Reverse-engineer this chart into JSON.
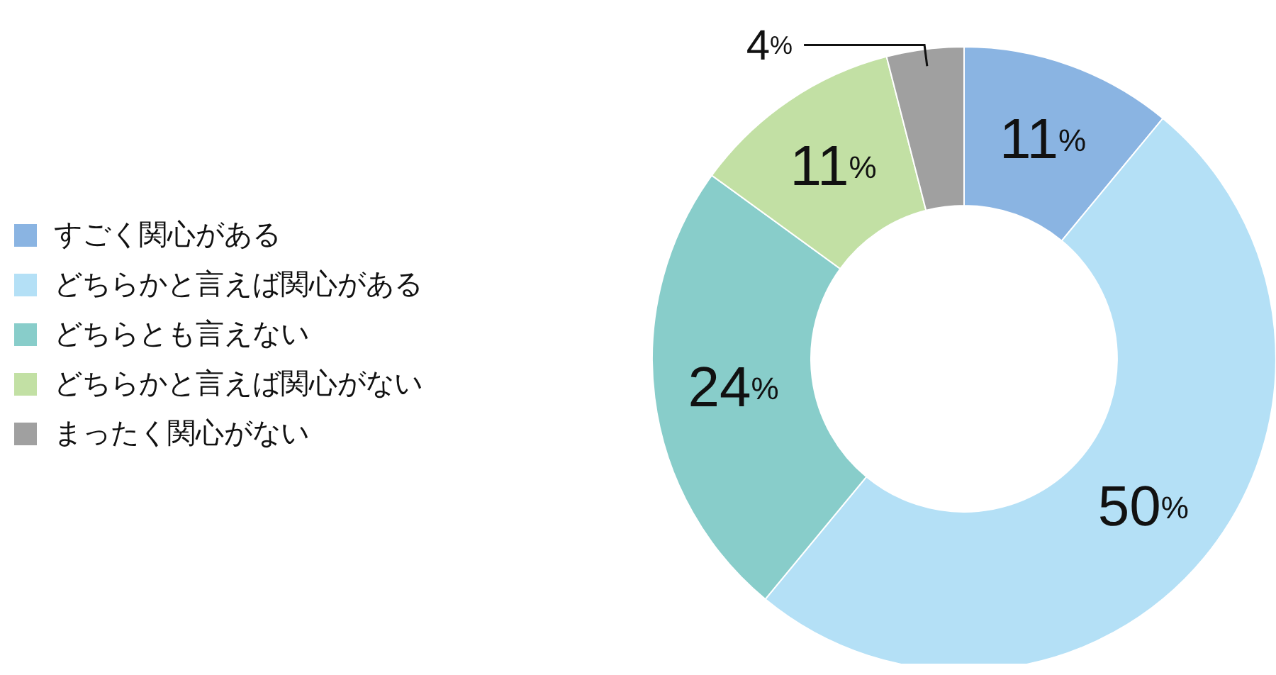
{
  "chart_data": {
    "type": "donut",
    "categories": [
      "すごく関心がある",
      "どちらかと言えば関心がある",
      "どちらとも言えない",
      "どちらかと言えば関心がない",
      "まったく関心がない"
    ],
    "values": [
      11,
      50,
      24,
      11,
      4
    ],
    "value_labels": [
      "11%",
      "50%",
      "24%",
      "11%",
      "4%"
    ],
    "colors": [
      "#8ab4e2",
      "#b4e0f6",
      "#88cdca",
      "#c2e0a4",
      "#a0a0a0"
    ],
    "legend": "left"
  }
}
